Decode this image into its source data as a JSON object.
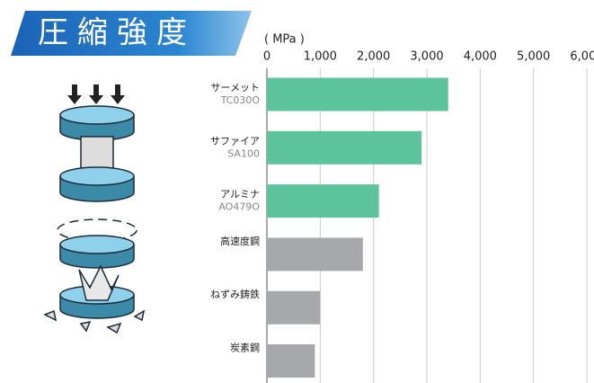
{
  "chart_data": {
    "type": "bar",
    "orientation": "horizontal",
    "title": "圧縮強度",
    "axis_label": "( MPa )",
    "categories": [
      "サーメット",
      "サファイア",
      "アルミナ",
      "高速度鋼",
      "ねずみ鋳鉄",
      "炭素鋼"
    ],
    "codes": [
      "TC030O",
      "SA100",
      "AO479O",
      null,
      null,
      null
    ],
    "values": [
      3400,
      2900,
      2100,
      1800,
      1000,
      900
    ],
    "colors": [
      "#5dc39c",
      "#5dc39c",
      "#5dc39c",
      "#a7a8ab",
      "#a7a8ab",
      "#a7a8ab"
    ],
    "xlim": [
      0,
      6000
    ],
    "xticks": [
      0,
      {
        "value": 1000,
        "label": "1,000"
      },
      {
        "value": 2000,
        "label": "2,000"
      },
      {
        "value": 3000,
        "label": "3,000"
      },
      {
        "value": 4000,
        "label": "4,000"
      },
      {
        "value": 5000,
        "label": "5,000"
      },
      {
        "value": 6000,
        "label": "6,000"
      }
    ],
    "grid": true
  }
}
